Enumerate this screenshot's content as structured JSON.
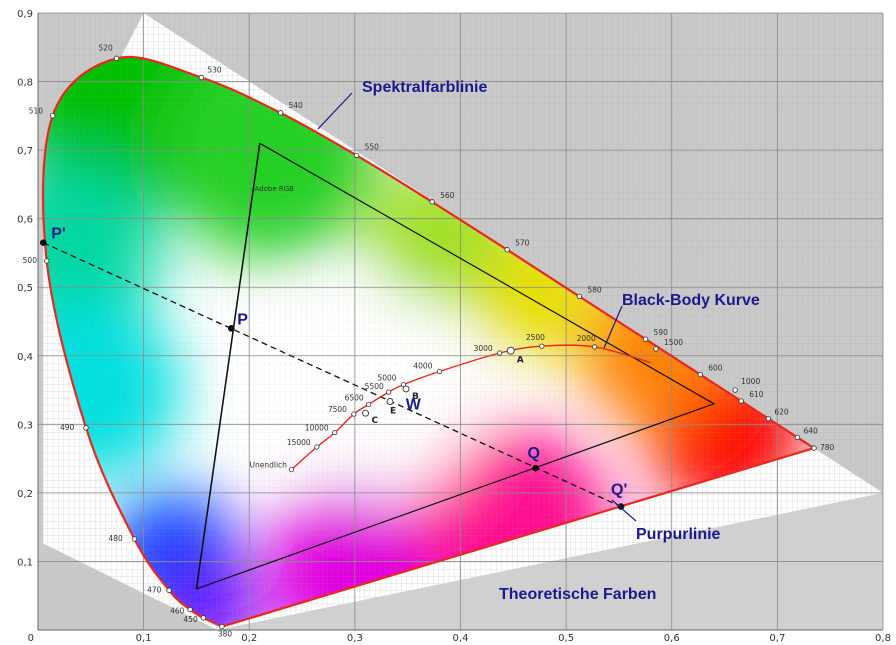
{
  "chart_data": {
    "type": "scatter",
    "xlim": [
      0,
      0.8
    ],
    "ylim": [
      0,
      0.9
    ],
    "x_ticks": [
      "0,1",
      "0,2",
      "0,3",
      "0,4",
      "0,5",
      "0,6",
      "0,7",
      "0,8"
    ],
    "y_ticks": [
      "0,1",
      "0,2",
      "0,3",
      "0,4",
      "0,5",
      "0,6",
      "0,7",
      "0,8",
      "0,9"
    ],
    "grid": true,
    "spectral_locus": [
      {
        "label": "380",
        "x": 0.1741,
        "y": 0.005
      },
      {
        "label": "450",
        "x": 0.1566,
        "y": 0.0177
      },
      {
        "label": "460",
        "x": 0.144,
        "y": 0.0297
      },
      {
        "label": "470",
        "x": 0.1241,
        "y": 0.0578
      },
      {
        "label": "480",
        "x": 0.0913,
        "y": 0.1327
      },
      {
        "label": "490",
        "x": 0.0454,
        "y": 0.295
      },
      {
        "label": "500",
        "x": 0.0082,
        "y": 0.5384
      },
      {
        "label": "510",
        "x": 0.0139,
        "y": 0.7502
      },
      {
        "label": "520",
        "x": 0.0743,
        "y": 0.8338
      },
      {
        "label": "530",
        "x": 0.1547,
        "y": 0.8059
      },
      {
        "label": "540",
        "x": 0.2296,
        "y": 0.7543
      },
      {
        "label": "550",
        "x": 0.3016,
        "y": 0.6923
      },
      {
        "label": "560",
        "x": 0.3731,
        "y": 0.6245
      },
      {
        "label": "570",
        "x": 0.4441,
        "y": 0.5547
      },
      {
        "label": "580",
        "x": 0.5125,
        "y": 0.4866
      },
      {
        "label": "590",
        "x": 0.5752,
        "y": 0.4242
      },
      {
        "label": "600",
        "x": 0.627,
        "y": 0.3725
      },
      {
        "label": "610",
        "x": 0.6658,
        "y": 0.334
      },
      {
        "label": "620",
        "x": 0.6915,
        "y": 0.3083
      },
      {
        "label": "640",
        "x": 0.719,
        "y": 0.2809
      },
      {
        "label": "780",
        "x": 0.7347,
        "y": 0.2653
      }
    ],
    "extra_locus_labels": [
      "1500",
      "1000"
    ],
    "adobe_rgb": {
      "label": "Adobe RGB",
      "points": [
        {
          "x": 0.21,
          "y": 0.71
        },
        {
          "x": 0.64,
          "y": 0.33
        },
        {
          "x": 0.15,
          "y": 0.06
        }
      ]
    },
    "black_body": {
      "name": "Black-Body Kurve",
      "points": [
        {
          "label": "Unendlich",
          "x": 0.24,
          "y": 0.234
        },
        {
          "label": "15000",
          "x": 0.264,
          "y": 0.267
        },
        {
          "label": "10000",
          "x": 0.281,
          "y": 0.288
        },
        {
          "label": "7500",
          "x": 0.299,
          "y": 0.315
        },
        {
          "label": "6500",
          "x": 0.313,
          "y": 0.329
        },
        {
          "label": "5500",
          "x": 0.332,
          "y": 0.347
        },
        {
          "label": "5000",
          "x": 0.346,
          "y": 0.358
        },
        {
          "label": "4000",
          "x": 0.38,
          "y": 0.377
        },
        {
          "label": "3000",
          "x": 0.437,
          "y": 0.404
        },
        {
          "label": "2500",
          "x": 0.477,
          "y": 0.414
        },
        {
          "label": "2000",
          "x": 0.527,
          "y": 0.413
        }
      ]
    },
    "illuminants": [
      {
        "label": "A",
        "x": 0.4476,
        "y": 0.4074
      },
      {
        "label": "B",
        "x": 0.3484,
        "y": 0.3516
      },
      {
        "label": "C",
        "x": 0.3101,
        "y": 0.3162
      },
      {
        "label": "E",
        "x": 0.3333,
        "y": 0.3333
      }
    ],
    "points": [
      {
        "label": "P'",
        "x": 0.005,
        "y": 0.565
      },
      {
        "label": "P",
        "x": 0.183,
        "y": 0.44
      },
      {
        "label": "W",
        "x": 0.333,
        "y": 0.333
      },
      {
        "label": "Q",
        "x": 0.471,
        "y": 0.236
      },
      {
        "label": "Q'",
        "x": 0.552,
        "y": 0.18
      }
    ],
    "annotations": [
      {
        "text": "Spektralfarblinie"
      },
      {
        "text": "Black-Body Kurve"
      },
      {
        "text": "Purpurlinie"
      },
      {
        "text": "Theoretische Farben"
      }
    ],
    "colors": {
      "locus_line": "#e8281e",
      "background_gray": "#c8c8c8",
      "annotation_text": "#1a1a8c"
    }
  }
}
